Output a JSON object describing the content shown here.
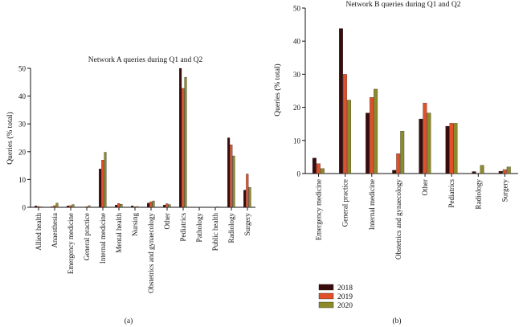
{
  "colors": {
    "2018": "#3a0b0b",
    "2019": "#e0502a",
    "2020": "#8d8a2a",
    "axis": "#111111"
  },
  "chart_data": [
    {
      "type": "bar",
      "title": "Network A queries during Q1 and Q2",
      "ylabel": "Queries (% total)",
      "xlabel": "",
      "panel_label": "(a)",
      "ylim": [
        0,
        50
      ],
      "yticks": [
        0,
        10,
        20,
        30,
        40,
        50
      ],
      "categories": [
        "Allied health",
        "Anaesthesia",
        "Emergency medicine",
        "General practice",
        "Internal medicine",
        "Mental health",
        "Nursing",
        "Obstetrics and gynaecology",
        "Other",
        "Pediatrics",
        "Pathology",
        "Public health",
        "Radiology",
        "Surgery"
      ],
      "series": [
        {
          "name": "2018",
          "values": [
            0.5,
            0.2,
            0.5,
            0.1,
            13.8,
            0.8,
            0.5,
            1.5,
            0.8,
            50.0,
            0.1,
            0.1,
            25.0,
            6.2
          ]
        },
        {
          "name": "2019",
          "values": [
            0.3,
            0.6,
            0.6,
            0.2,
            17.0,
            1.4,
            0.2,
            2.0,
            1.3,
            42.8,
            0.1,
            0.1,
            22.5,
            12.0
          ]
        },
        {
          "name": "2020",
          "values": [
            0.2,
            1.5,
            1.0,
            0.6,
            19.8,
            1.1,
            0.3,
            2.3,
            1.0,
            46.8,
            0.0,
            0.2,
            18.5,
            7.2
          ]
        }
      ],
      "grid": false,
      "legend": "none"
    },
    {
      "type": "bar",
      "title": "Network B queries during Q1 and Q2",
      "ylabel": "Queries (% total)",
      "xlabel": "",
      "panel_label": "(b)",
      "ylim": [
        0,
        50
      ],
      "yticks": [
        0,
        10,
        20,
        30,
        40,
        50
      ],
      "categories": [
        "Emergency medicine",
        "General practice",
        "Internal medicine",
        "Obstetrics and gynaecology",
        "Other",
        "Pediatrics",
        "Radiology",
        "Surgery"
      ],
      "series": [
        {
          "name": "2018",
          "values": [
            4.7,
            43.8,
            18.3,
            1.0,
            16.5,
            14.3,
            0.6,
            0.7
          ]
        },
        {
          "name": "2019",
          "values": [
            3.0,
            30.0,
            23.0,
            6.0,
            21.3,
            15.2,
            0.1,
            1.2
          ]
        },
        {
          "name": "2020",
          "values": [
            1.5,
            22.2,
            25.5,
            12.8,
            18.3,
            15.2,
            2.5,
            2.0
          ]
        }
      ],
      "grid": false,
      "legend": "bottom-left",
      "legend_entries": [
        "2018",
        "2019",
        "2020"
      ]
    }
  ]
}
